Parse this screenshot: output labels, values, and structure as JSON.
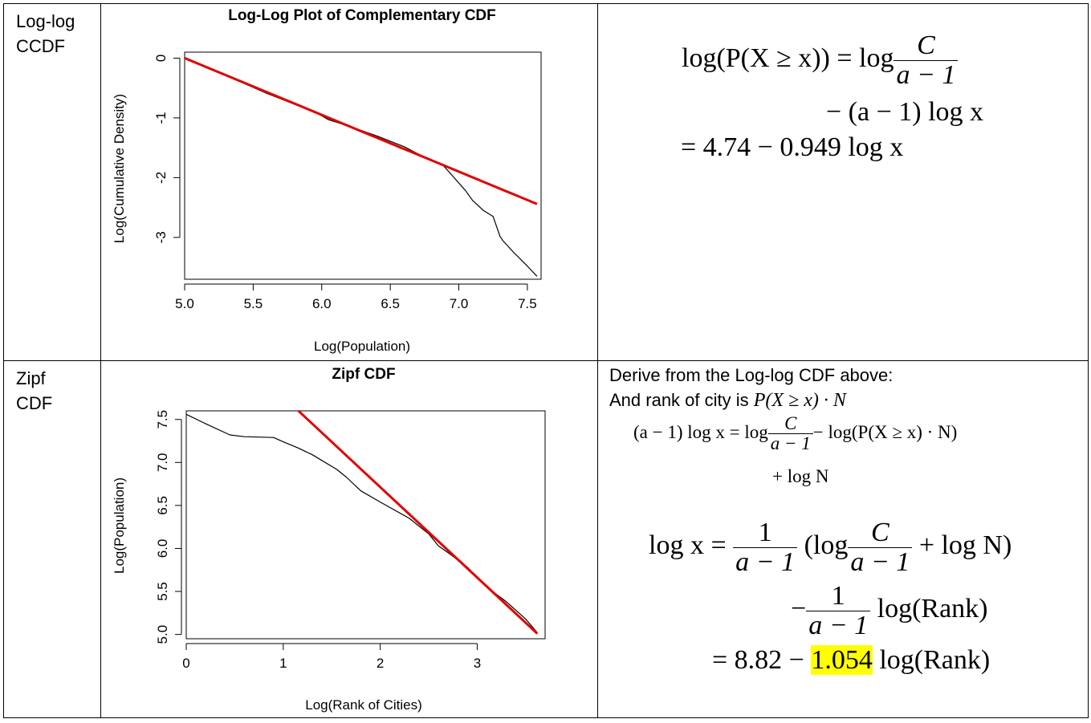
{
  "rows": [
    {
      "label_line1": "Log-log",
      "label_line2": "CCDF",
      "formula": {
        "lhs": "log(P(X ≥ x)) = log",
        "c": "C",
        "den": "a − 1",
        "line2": "− (a − 1) log x",
        "line3": "= 4.74 − 0.949 log x"
      }
    },
    {
      "label_line1": "Zipf",
      "label_line2": "CDF",
      "intro_line1": "Derive from the Log-log CDF above:",
      "intro_line2a": "And rank of city is",
      "intro_line2b": "P(X ≥ x) · N",
      "formula": {
        "f1a": "(a − 1) log x = log",
        "c": "C",
        "den": "a − 1",
        "f1b": "− log(P(X ≥ x) · N)",
        "f1c": "+ log N",
        "f2a": "log x =",
        "one": "1",
        "f2b": "(log",
        "f2c": "+ log N)",
        "f3a": "−",
        "f3b": "log(Rank)",
        "f4a": "= 8.82 −",
        "f4hl": "1.054",
        "f4b": "log(Rank)"
      }
    }
  ],
  "chart_data": [
    {
      "type": "line",
      "title": "Log-Log Plot of Complementary CDF",
      "xlabel": "Log(Population)",
      "ylabel": "Log(Cumulative Density)",
      "xlim": [
        5.0,
        7.6
      ],
      "ylim": [
        -3.7,
        0.1
      ],
      "xticks": [
        5.0,
        5.5,
        6.0,
        6.5,
        7.0,
        7.5
      ],
      "xtick_labels": [
        "5.0",
        "5.5",
        "6.0",
        "6.5",
        "7.0",
        "7.5"
      ],
      "yticks": [
        0,
        -1,
        -2,
        -3
      ],
      "ytick_labels": [
        "0",
        "-1",
        "-2",
        "-3"
      ],
      "grid": false,
      "series": [
        {
          "role": "data",
          "color": "#000000",
          "x": [
            5.0,
            5.2,
            5.4,
            5.6,
            5.8,
            5.95,
            6.05,
            6.2,
            6.4,
            6.6,
            6.8,
            6.88,
            6.95,
            7.05,
            7.1,
            7.18,
            7.25,
            7.28,
            7.3,
            7.32,
            7.4,
            7.5,
            7.57
          ],
          "y": [
            0.0,
            -0.19,
            -0.39,
            -0.59,
            -0.77,
            -0.9,
            -1.03,
            -1.14,
            -1.3,
            -1.48,
            -1.72,
            -1.78,
            -1.96,
            -2.22,
            -2.38,
            -2.55,
            -2.65,
            -2.85,
            -2.98,
            -3.05,
            -3.25,
            -3.48,
            -3.65
          ]
        },
        {
          "role": "fit",
          "color": "#e00000",
          "x": [
            5.0,
            7.57
          ],
          "y": [
            0.0,
            -2.44
          ]
        }
      ]
    },
    {
      "type": "line",
      "title": "Zipf CDF",
      "xlabel": "Log(Rank of Cities)",
      "ylabel": "Log(Population)",
      "xlim": [
        0,
        3.7
      ],
      "ylim": [
        4.95,
        7.6
      ],
      "xticks": [
        0,
        1,
        2,
        3
      ],
      "xtick_labels": [
        "0",
        "1",
        "2",
        "3"
      ],
      "yticks": [
        5.0,
        5.5,
        6.0,
        6.5,
        7.0,
        7.5
      ],
      "ytick_labels": [
        "5.0",
        "5.5",
        "6.0",
        "6.5",
        "7.0",
        "7.5"
      ],
      "grid": false,
      "series": [
        {
          "role": "data",
          "color": "#000000",
          "x": [
            0,
            0.2,
            0.45,
            0.6,
            0.9,
            1.0,
            1.15,
            1.3,
            1.55,
            1.65,
            1.8,
            2.0,
            2.3,
            2.5,
            2.6,
            2.7,
            2.9,
            3.1,
            3.3,
            3.5,
            3.62
          ],
          "y": [
            7.56,
            7.45,
            7.32,
            7.3,
            7.29,
            7.24,
            7.17,
            7.09,
            6.92,
            6.83,
            6.67,
            6.54,
            6.35,
            6.17,
            6.03,
            5.95,
            5.78,
            5.55,
            5.38,
            5.18,
            5.02
          ]
        },
        {
          "role": "fit",
          "color": "#e00000",
          "x": [
            1.1,
            3.62
          ],
          "y": [
            7.66,
            5.01
          ]
        }
      ]
    }
  ]
}
